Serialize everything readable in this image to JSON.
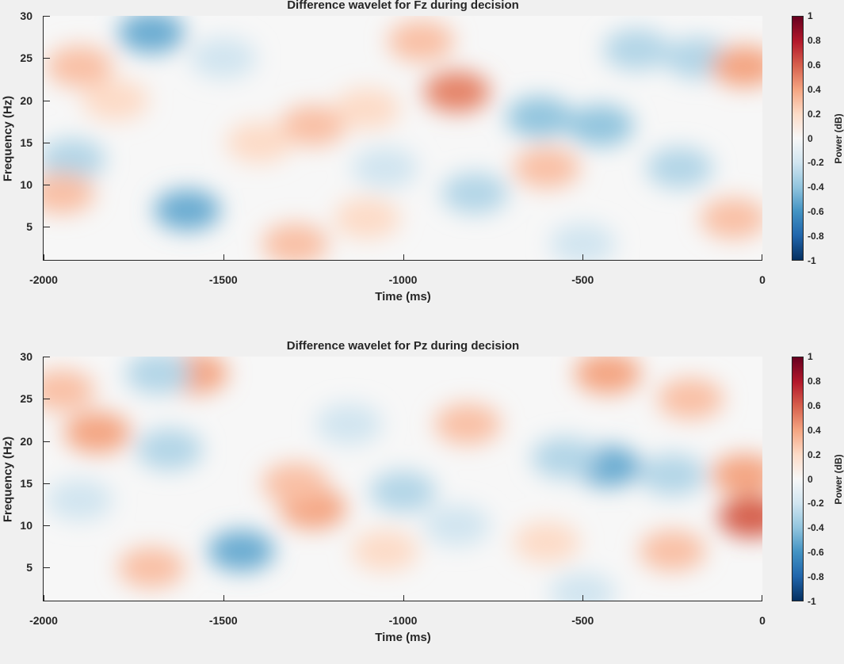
{
  "chart_data": [
    {
      "type": "heatmap",
      "title": "Difference wavelet for Fz during decision",
      "xlabel": "Time (ms)",
      "ylabel": "Frequency (Hz)",
      "xlim": [
        -2000,
        0
      ],
      "ylim": [
        1,
        30
      ],
      "xticks": [
        -2000,
        -1500,
        -1000,
        -500,
        0
      ],
      "yticks": [
        5,
        10,
        15,
        20,
        25,
        30
      ],
      "colorbar": {
        "label": "Power (dB)",
        "clim": [
          -1,
          1
        ],
        "ticks": [
          1,
          0.8,
          0.6,
          0.4,
          0.2,
          0,
          -0.2,
          -0.4,
          -0.6,
          -0.8,
          -1
        ]
      },
      "blobs": [
        {
          "x": -1700,
          "y": 28,
          "value": -0.5
        },
        {
          "x": -1600,
          "y": 7,
          "value": -0.5
        },
        {
          "x": -1250,
          "y": 17,
          "value": 0.3
        },
        {
          "x": -1400,
          "y": 15,
          "value": 0.2
        },
        {
          "x": -1100,
          "y": 19,
          "value": 0.2
        },
        {
          "x": -850,
          "y": 21,
          "value": 0.5
        },
        {
          "x": -950,
          "y": 27,
          "value": 0.3
        },
        {
          "x": -1920,
          "y": 13,
          "value": -0.3
        },
        {
          "x": -1900,
          "y": 24,
          "value": 0.3
        },
        {
          "x": -1950,
          "y": 9,
          "value": 0.3
        },
        {
          "x": -1800,
          "y": 20,
          "value": 0.2
        },
        {
          "x": -1300,
          "y": 3,
          "value": 0.3
        },
        {
          "x": -1100,
          "y": 6,
          "value": 0.2
        },
        {
          "x": -800,
          "y": 9,
          "value": -0.3
        },
        {
          "x": -620,
          "y": 18,
          "value": -0.4
        },
        {
          "x": -450,
          "y": 17,
          "value": -0.4
        },
        {
          "x": -600,
          "y": 12,
          "value": 0.3
        },
        {
          "x": -350,
          "y": 26,
          "value": -0.3
        },
        {
          "x": -180,
          "y": 25,
          "value": -0.3
        },
        {
          "x": -230,
          "y": 12,
          "value": -0.3
        },
        {
          "x": -50,
          "y": 24,
          "value": 0.4
        },
        {
          "x": -80,
          "y": 6,
          "value": 0.3
        },
        {
          "x": -1500,
          "y": 25,
          "value": -0.2
        },
        {
          "x": -1050,
          "y": 12,
          "value": -0.2
        },
        {
          "x": -500,
          "y": 3,
          "value": -0.2
        }
      ]
    },
    {
      "type": "heatmap",
      "title": "Difference wavelet for Pz during decision",
      "xlabel": "Time (ms)",
      "ylabel": "Frequency (Hz)",
      "xlim": [
        -2000,
        0
      ],
      "ylim": [
        1,
        30
      ],
      "xticks": [
        -2000,
        -1500,
        -1000,
        -500,
        0
      ],
      "yticks": [
        5,
        10,
        15,
        20,
        25,
        30
      ],
      "colorbar": {
        "label": "Power (dB)",
        "clim": [
          -1,
          1
        ],
        "ticks": [
          1,
          0.8,
          0.6,
          0.4,
          0.2,
          0,
          -0.2,
          -0.4,
          -0.6,
          -0.8,
          -1
        ]
      },
      "blobs": [
        {
          "x": -1450,
          "y": 7,
          "value": -0.5
        },
        {
          "x": -1250,
          "y": 12,
          "value": 0.4
        },
        {
          "x": -1300,
          "y": 15,
          "value": 0.3
        },
        {
          "x": -1850,
          "y": 21,
          "value": 0.4
        },
        {
          "x": -1950,
          "y": 26,
          "value": 0.3
        },
        {
          "x": -1700,
          "y": 5,
          "value": 0.3
        },
        {
          "x": -1580,
          "y": 28,
          "value": 0.4
        },
        {
          "x": -1680,
          "y": 28,
          "value": -0.3
        },
        {
          "x": -1900,
          "y": 13,
          "value": -0.2
        },
        {
          "x": -1650,
          "y": 19,
          "value": -0.3
        },
        {
          "x": -1000,
          "y": 14,
          "value": -0.3
        },
        {
          "x": -850,
          "y": 10,
          "value": -0.2
        },
        {
          "x": -820,
          "y": 22,
          "value": 0.3
        },
        {
          "x": -430,
          "y": 17,
          "value": -0.5
        },
        {
          "x": -550,
          "y": 18,
          "value": -0.3
        },
        {
          "x": -430,
          "y": 28,
          "value": 0.4
        },
        {
          "x": -250,
          "y": 16,
          "value": -0.3
        },
        {
          "x": -250,
          "y": 7,
          "value": 0.3
        },
        {
          "x": -600,
          "y": 8,
          "value": 0.2
        },
        {
          "x": -30,
          "y": 11,
          "value": 0.6
        },
        {
          "x": -50,
          "y": 16,
          "value": 0.4
        },
        {
          "x": -200,
          "y": 25,
          "value": 0.3
        },
        {
          "x": -1050,
          "y": 7,
          "value": 0.2
        },
        {
          "x": -1150,
          "y": 22,
          "value": -0.2
        },
        {
          "x": -500,
          "y": 2,
          "value": -0.2
        }
      ]
    }
  ]
}
